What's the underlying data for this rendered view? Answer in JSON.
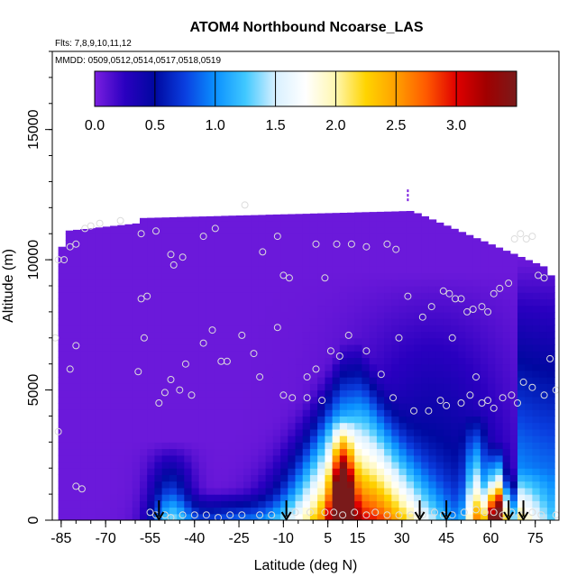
{
  "chart_data": {
    "type": "heatmap",
    "title": "ATOM4 Northbound Ncoarse_LAS",
    "subtitle_lines": [
      "Flts: 7,8,9,10,11,12",
      "MMDD: 0509,0512,0514,0517,0518,0519"
    ],
    "xlabel": "Latitude (deg N)",
    "ylabel": "Altitude (m)",
    "xlim": [
      -88,
      83
    ],
    "ylim": [
      0,
      18000
    ],
    "x_ticks": [
      -85,
      -70,
      -55,
      -40,
      -25,
      -10,
      5,
      15,
      30,
      45,
      60,
      75
    ],
    "y_ticks": [
      0,
      5000,
      10000,
      15000
    ],
    "colorbar": {
      "ticks": [
        0.0,
        0.5,
        1.0,
        1.5,
        2.0,
        2.5,
        3.0
      ],
      "tick_labels": [
        "0.0",
        "0.5",
        "1.0",
        "1.5",
        "2.0",
        "2.5",
        "3.0"
      ],
      "range": [
        0,
        3.5
      ],
      "colors": [
        "#7b1fe0",
        "#2a00c0",
        "#0008a0",
        "#0a3fe0",
        "#0a90ff",
        "#40c8ff",
        "#d8f0ff",
        "#ffffff",
        "#fff7b0",
        "#ffd400",
        "#ffa000",
        "#ff5a00",
        "#e00000",
        "#a00000",
        "#7a1a1a"
      ]
    },
    "data_points": [
      [
        -86,
        10000
      ],
      [
        -84,
        10000
      ],
      [
        -82,
        10500
      ],
      [
        -80,
        10600
      ],
      [
        -77,
        11200
      ],
      [
        -75,
        11300
      ],
      [
        -72,
        11400
      ],
      [
        -65,
        11500
      ],
      [
        -58,
        11000
      ],
      [
        -53,
        11100
      ],
      [
        -48,
        10200
      ],
      [
        -47,
        9800
      ],
      [
        -44,
        10100
      ],
      [
        -37,
        10900
      ],
      [
        -33,
        11200
      ],
      [
        -23,
        12100
      ],
      [
        -17,
        10300
      ],
      [
        -12,
        10900
      ],
      [
        -10,
        9400
      ],
      [
        -8,
        9300
      ],
      [
        1,
        10600
      ],
      [
        4,
        9300
      ],
      [
        8,
        10600
      ],
      [
        13,
        10600
      ],
      [
        18,
        10500
      ],
      [
        25,
        10600
      ],
      [
        28,
        10400
      ],
      [
        32,
        8600
      ],
      [
        37,
        7800
      ],
      [
        40,
        8200
      ],
      [
        44,
        8800
      ],
      [
        46,
        8700
      ],
      [
        48,
        8500
      ],
      [
        50,
        8500
      ],
      [
        52,
        8000
      ],
      [
        54,
        8100
      ],
      [
        57,
        8200
      ],
      [
        59,
        8000
      ],
      [
        61,
        8700
      ],
      [
        63,
        8900
      ],
      [
        66,
        9100
      ],
      [
        68,
        10800
      ],
      [
        70,
        11000
      ],
      [
        72,
        10800
      ],
      [
        74,
        10900
      ],
      [
        76,
        9400
      ],
      [
        78,
        9300
      ],
      [
        80,
        6200
      ],
      [
        -87,
        7000
      ],
      [
        -82,
        5800
      ],
      [
        -80,
        6700
      ],
      [
        -58,
        8500
      ],
      [
        -56,
        8600
      ],
      [
        -57,
        7000
      ],
      [
        -59,
        5700
      ],
      [
        -52,
        4500
      ],
      [
        -50,
        4900
      ],
      [
        -48,
        5400
      ],
      [
        -45,
        5000
      ],
      [
        -43,
        6000
      ],
      [
        -41,
        4800
      ],
      [
        -37,
        6800
      ],
      [
        -34,
        7300
      ],
      [
        -31,
        6100
      ],
      [
        -29,
        6100
      ],
      [
        -24,
        7100
      ],
      [
        -20,
        6400
      ],
      [
        -18,
        5500
      ],
      [
        -12,
        7400
      ],
      [
        -10,
        4800
      ],
      [
        -7,
        4700
      ],
      [
        -2,
        4700
      ],
      [
        -2,
        5500
      ],
      [
        1,
        5800
      ],
      [
        3,
        4600
      ],
      [
        6,
        6500
      ],
      [
        9,
        6300
      ],
      [
        12,
        7100
      ],
      [
        18,
        6500
      ],
      [
        23,
        5600
      ],
      [
        27,
        4700
      ],
      [
        29,
        7000
      ],
      [
        34,
        4200
      ],
      [
        39,
        4200
      ],
      [
        43,
        4600
      ],
      [
        45,
        4400
      ],
      [
        47,
        7000
      ],
      [
        50,
        4500
      ],
      [
        53,
        4800
      ],
      [
        55,
        5500
      ],
      [
        57,
        4500
      ],
      [
        59,
        4600
      ],
      [
        61,
        4300
      ],
      [
        64,
        4700
      ],
      [
        67,
        4800
      ],
      [
        69,
        4500
      ],
      [
        71,
        5300
      ],
      [
        74,
        5100
      ],
      [
        78,
        4800
      ],
      [
        82,
        5000
      ],
      [
        -86,
        3400
      ],
      [
        -80,
        1300
      ],
      [
        -78,
        1200
      ],
      [
        -55,
        300
      ],
      [
        -53,
        200
      ],
      [
        -50,
        200
      ],
      [
        -48,
        100
      ],
      [
        -44,
        200
      ],
      [
        -40,
        200
      ],
      [
        -36,
        200
      ],
      [
        -32,
        100
      ],
      [
        -28,
        200
      ],
      [
        -24,
        200
      ],
      [
        -18,
        200
      ],
      [
        -14,
        200
      ],
      [
        -6,
        300
      ],
      [
        -1,
        300
      ],
      [
        4,
        300
      ],
      [
        7,
        300
      ],
      [
        10,
        200
      ],
      [
        14,
        300
      ],
      [
        18,
        200
      ],
      [
        21,
        300
      ],
      [
        25,
        200
      ],
      [
        29,
        200
      ],
      [
        33,
        200
      ],
      [
        37,
        200
      ],
      [
        41,
        300
      ],
      [
        44,
        200
      ],
      [
        47,
        200
      ],
      [
        51,
        300
      ],
      [
        55,
        400
      ],
      [
        58,
        300
      ],
      [
        61,
        300
      ],
      [
        64,
        200
      ],
      [
        67,
        300
      ],
      [
        70,
        200
      ],
      [
        74,
        300
      ],
      [
        77,
        200
      ],
      [
        82,
        200
      ]
    ],
    "arrow_latitudes": [
      -52,
      -9,
      36,
      45,
      66,
      71
    ],
    "dashed_marker": {
      "x": 32,
      "y0": 12200,
      "y1": 12700
    }
  }
}
